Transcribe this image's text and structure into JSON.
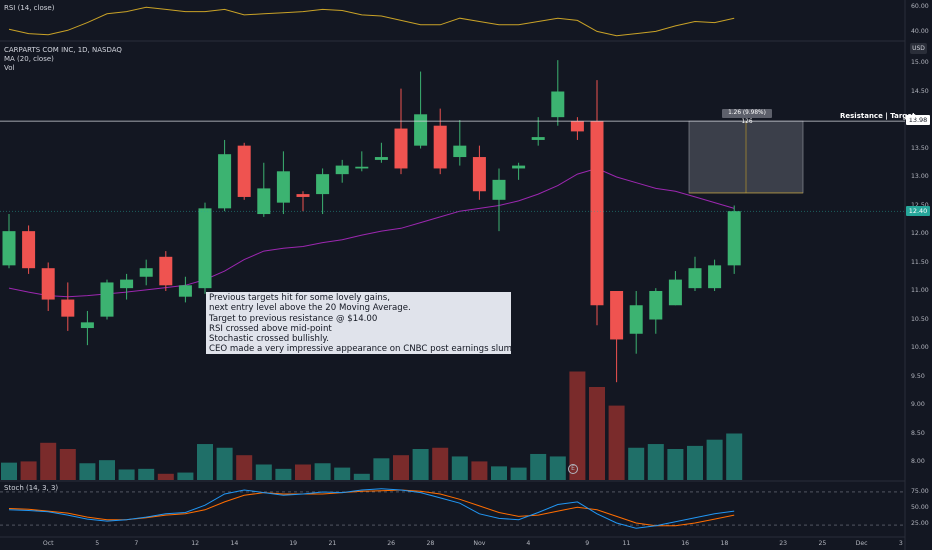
{
  "symbol": {
    "title": "CARPARTS COM INC, 1D, NASDAQ",
    "ma_label": "MA (20, close)",
    "vol_label": "Vol",
    "currency": "USD"
  },
  "rsi": {
    "label": "RSI (14, close)",
    "ticks": [
      "60.00",
      "40.00"
    ]
  },
  "stoch": {
    "label": "Stoch (14, 3, 3)",
    "ticks": [
      "75.00",
      "50.00",
      "25.00"
    ]
  },
  "price_axis": {
    "ticks": [
      "15.00",
      "14.50",
      "14.00",
      "13.50",
      "13.00",
      "12.50",
      "12.00",
      "11.50",
      "11.00",
      "10.50",
      "10.00",
      "9.50",
      "9.00",
      "8.50",
      "8.00"
    ],
    "resistance_badge": "13.98",
    "last_price_badge": "12.40"
  },
  "annotation": {
    "lines": [
      "Previous targets hit for some lovely gains,",
      "next entry level above the 20 Moving Average.",
      "Target to previous resistance @ $14.00",
      "RSI crossed above mid-point",
      "Stochastic crossed bullishly.",
      "CEO made a very impressive appearance on CNBC post earnings slump."
    ],
    "measure_label": "1.26 (9.98%) 126",
    "resistance_label": "Resistance | Target",
    "earnings_marker": "E"
  },
  "x_axis": {
    "ticks": [
      "Oct",
      "5",
      "7",
      "12",
      "14",
      "19",
      "21",
      "26",
      "28",
      "Nov",
      "4",
      "9",
      "11",
      "16",
      "18",
      "23",
      "25",
      "Dec",
      "3"
    ]
  },
  "colors": {
    "up": "#26a69a",
    "up_candle": "#3cb371",
    "down": "#ef5350",
    "ma": "#9c27b0",
    "rsi": "#c9a227",
    "stoch_k": "#2196f3",
    "stoch_d": "#ff6d00",
    "background": "#131722"
  },
  "chart_data": {
    "type": "candlestick",
    "title": "CARPARTS COM INC, 1D, NASDAQ",
    "ylim": [
      7.7,
      15.3
    ],
    "candles": [
      {
        "date": "Sep 29",
        "open": 11.45,
        "high": 12.35,
        "low": 11.4,
        "close": 12.05
      },
      {
        "date": "Sep 30",
        "open": 12.05,
        "high": 12.15,
        "low": 11.3,
        "close": 11.4
      },
      {
        "date": "Oct 1",
        "open": 11.4,
        "high": 11.5,
        "low": 10.65,
        "close": 10.85
      },
      {
        "date": "Oct 2",
        "open": 10.85,
        "high": 11.15,
        "low": 10.3,
        "close": 10.55
      },
      {
        "date": "Oct 5",
        "open": 10.35,
        "high": 10.65,
        "low": 10.05,
        "close": 10.45
      },
      {
        "date": "Oct 6",
        "open": 10.55,
        "high": 11.2,
        "low": 10.5,
        "close": 11.15
      },
      {
        "date": "Oct 7",
        "open": 11.05,
        "high": 11.3,
        "low": 10.85,
        "close": 11.2
      },
      {
        "date": "Oct 8",
        "open": 11.25,
        "high": 11.55,
        "low": 11.1,
        "close": 11.4
      },
      {
        "date": "Oct 9",
        "open": 11.6,
        "high": 11.7,
        "low": 11.0,
        "close": 11.1
      },
      {
        "date": "Oct 12",
        "open": 10.9,
        "high": 11.25,
        "low": 10.8,
        "close": 11.1
      },
      {
        "date": "Oct 13",
        "open": 11.05,
        "high": 12.55,
        "low": 10.95,
        "close": 12.45
      },
      {
        "date": "Oct 14",
        "open": 12.45,
        "high": 13.65,
        "low": 12.4,
        "close": 13.4
      },
      {
        "date": "Oct 15",
        "open": 13.55,
        "high": 13.6,
        "low": 12.6,
        "close": 12.65
      },
      {
        "date": "Oct 16",
        "open": 12.35,
        "high": 13.25,
        "low": 12.3,
        "close": 12.8
      },
      {
        "date": "Oct 19",
        "open": 12.55,
        "high": 13.45,
        "low": 12.35,
        "close": 13.1
      },
      {
        "date": "Oct 20",
        "open": 12.7,
        "high": 12.75,
        "low": 12.4,
        "close": 12.65
      },
      {
        "date": "Oct 21",
        "open": 12.7,
        "high": 13.15,
        "low": 12.35,
        "close": 13.05
      },
      {
        "date": "Oct 22",
        "open": 13.05,
        "high": 13.3,
        "low": 12.9,
        "close": 13.2
      },
      {
        "date": "Oct 23",
        "open": 13.15,
        "high": 13.45,
        "low": 13.1,
        "close": 13.18
      },
      {
        "date": "Oct 26",
        "open": 13.3,
        "high": 13.6,
        "low": 13.25,
        "close": 13.35
      },
      {
        "date": "Oct 27",
        "open": 13.85,
        "high": 14.55,
        "low": 13.05,
        "close": 13.15
      },
      {
        "date": "Oct 28",
        "open": 13.55,
        "high": 14.85,
        "low": 13.5,
        "close": 14.1
      },
      {
        "date": "Oct 29",
        "open": 13.9,
        "high": 14.2,
        "low": 13.05,
        "close": 13.15
      },
      {
        "date": "Oct 30",
        "open": 13.35,
        "high": 14.0,
        "low": 13.2,
        "close": 13.55
      },
      {
        "date": "Nov 2",
        "open": 13.35,
        "high": 13.55,
        "low": 12.6,
        "close": 12.75
      },
      {
        "date": "Nov 3",
        "open": 12.6,
        "high": 13.15,
        "low": 12.05,
        "close": 12.95
      },
      {
        "date": "Nov 4",
        "open": 13.15,
        "high": 13.25,
        "low": 12.95,
        "close": 13.2
      },
      {
        "date": "Nov 5",
        "open": 13.65,
        "high": 14.05,
        "low": 13.55,
        "close": 13.7
      },
      {
        "date": "Nov 6",
        "open": 14.05,
        "high": 15.05,
        "low": 13.9,
        "close": 14.5
      },
      {
        "date": "Nov 9",
        "open": 13.98,
        "high": 14.05,
        "low": 13.65,
        "close": 13.8
      },
      {
        "date": "Nov 10",
        "open": 13.98,
        "high": 14.7,
        "low": 10.4,
        "close": 10.75
      },
      {
        "date": "Nov 11",
        "open": 11.0,
        "high": 11.0,
        "low": 9.4,
        "close": 10.15
      },
      {
        "date": "Nov 12",
        "open": 10.25,
        "high": 11.0,
        "low": 9.9,
        "close": 10.75
      },
      {
        "date": "Nov 13",
        "open": 10.5,
        "high": 11.05,
        "low": 10.25,
        "close": 11.0
      },
      {
        "date": "Nov 16",
        "open": 10.75,
        "high": 11.35,
        "low": 10.75,
        "close": 11.2
      },
      {
        "date": "Nov 17",
        "open": 11.05,
        "high": 11.6,
        "low": 11.0,
        "close": 11.4
      },
      {
        "date": "Nov 18",
        "open": 11.05,
        "high": 11.55,
        "low": 11.0,
        "close": 11.45
      },
      {
        "date": "Nov 19",
        "open": 11.45,
        "high": 12.5,
        "low": 11.3,
        "close": 12.4
      }
    ],
    "volume": [
      0.28,
      0.3,
      0.6,
      0.5,
      0.27,
      0.32,
      0.17,
      0.18,
      0.1,
      0.12,
      0.58,
      0.52,
      0.4,
      0.25,
      0.18,
      0.25,
      0.27,
      0.2,
      0.1,
      0.35,
      0.4,
      0.5,
      0.52,
      0.38,
      0.3,
      0.22,
      0.2,
      0.42,
      0.38,
      1.75,
      1.5,
      1.2,
      0.52,
      0.58,
      0.5,
      0.55,
      0.65,
      0.75
    ],
    "ma20": [
      11.05,
      10.98,
      10.92,
      10.9,
      10.92,
      10.95,
      10.98,
      11.02,
      11.06,
      11.1,
      11.2,
      11.35,
      11.55,
      11.7,
      11.75,
      11.78,
      11.85,
      11.9,
      11.98,
      12.05,
      12.1,
      12.2,
      12.3,
      12.4,
      12.45,
      12.5,
      12.58,
      12.7,
      12.85,
      13.05,
      13.15,
      13.0,
      12.9,
      12.8,
      12.75,
      12.65,
      12.55,
      12.45
    ],
    "rsi14": [
      42,
      38,
      37,
      41,
      48,
      56,
      58,
      62,
      60,
      58,
      58,
      60,
      55,
      56,
      57,
      58,
      60,
      59,
      55,
      54,
      50,
      46,
      46,
      52,
      49,
      46,
      46,
      49,
      52,
      50,
      40,
      36,
      38,
      40,
      45,
      49,
      48,
      52
    ],
    "stoch_k": [
      48,
      47,
      45,
      40,
      34,
      31,
      33,
      37,
      42,
      44,
      55,
      72,
      78,
      74,
      70,
      72,
      75,
      74,
      78,
      80,
      78,
      74,
      66,
      58,
      42,
      35,
      33,
      44,
      56,
      60,
      42,
      28,
      20,
      24,
      30,
      36,
      42,
      46
    ],
    "stoch_d": [
      50,
      49,
      46,
      43,
      37,
      33,
      33,
      36,
      40,
      42,
      48,
      60,
      70,
      74,
      72,
      72,
      72,
      74,
      76,
      77,
      78,
      76,
      72,
      64,
      54,
      44,
      38,
      40,
      46,
      52,
      48,
      38,
      28,
      24,
      24,
      28,
      34,
      40
    ],
    "resistance": 13.98,
    "target_box": {
      "from": 12.72,
      "to": 13.98
    },
    "x_ticks": [
      "Oct",
      "5",
      "7",
      "12",
      "14",
      "19",
      "21",
      "26",
      "28",
      "Nov",
      "4",
      "9",
      "11",
      "16",
      "18",
      "23",
      "25",
      "Dec",
      "3"
    ],
    "grid": false
  }
}
